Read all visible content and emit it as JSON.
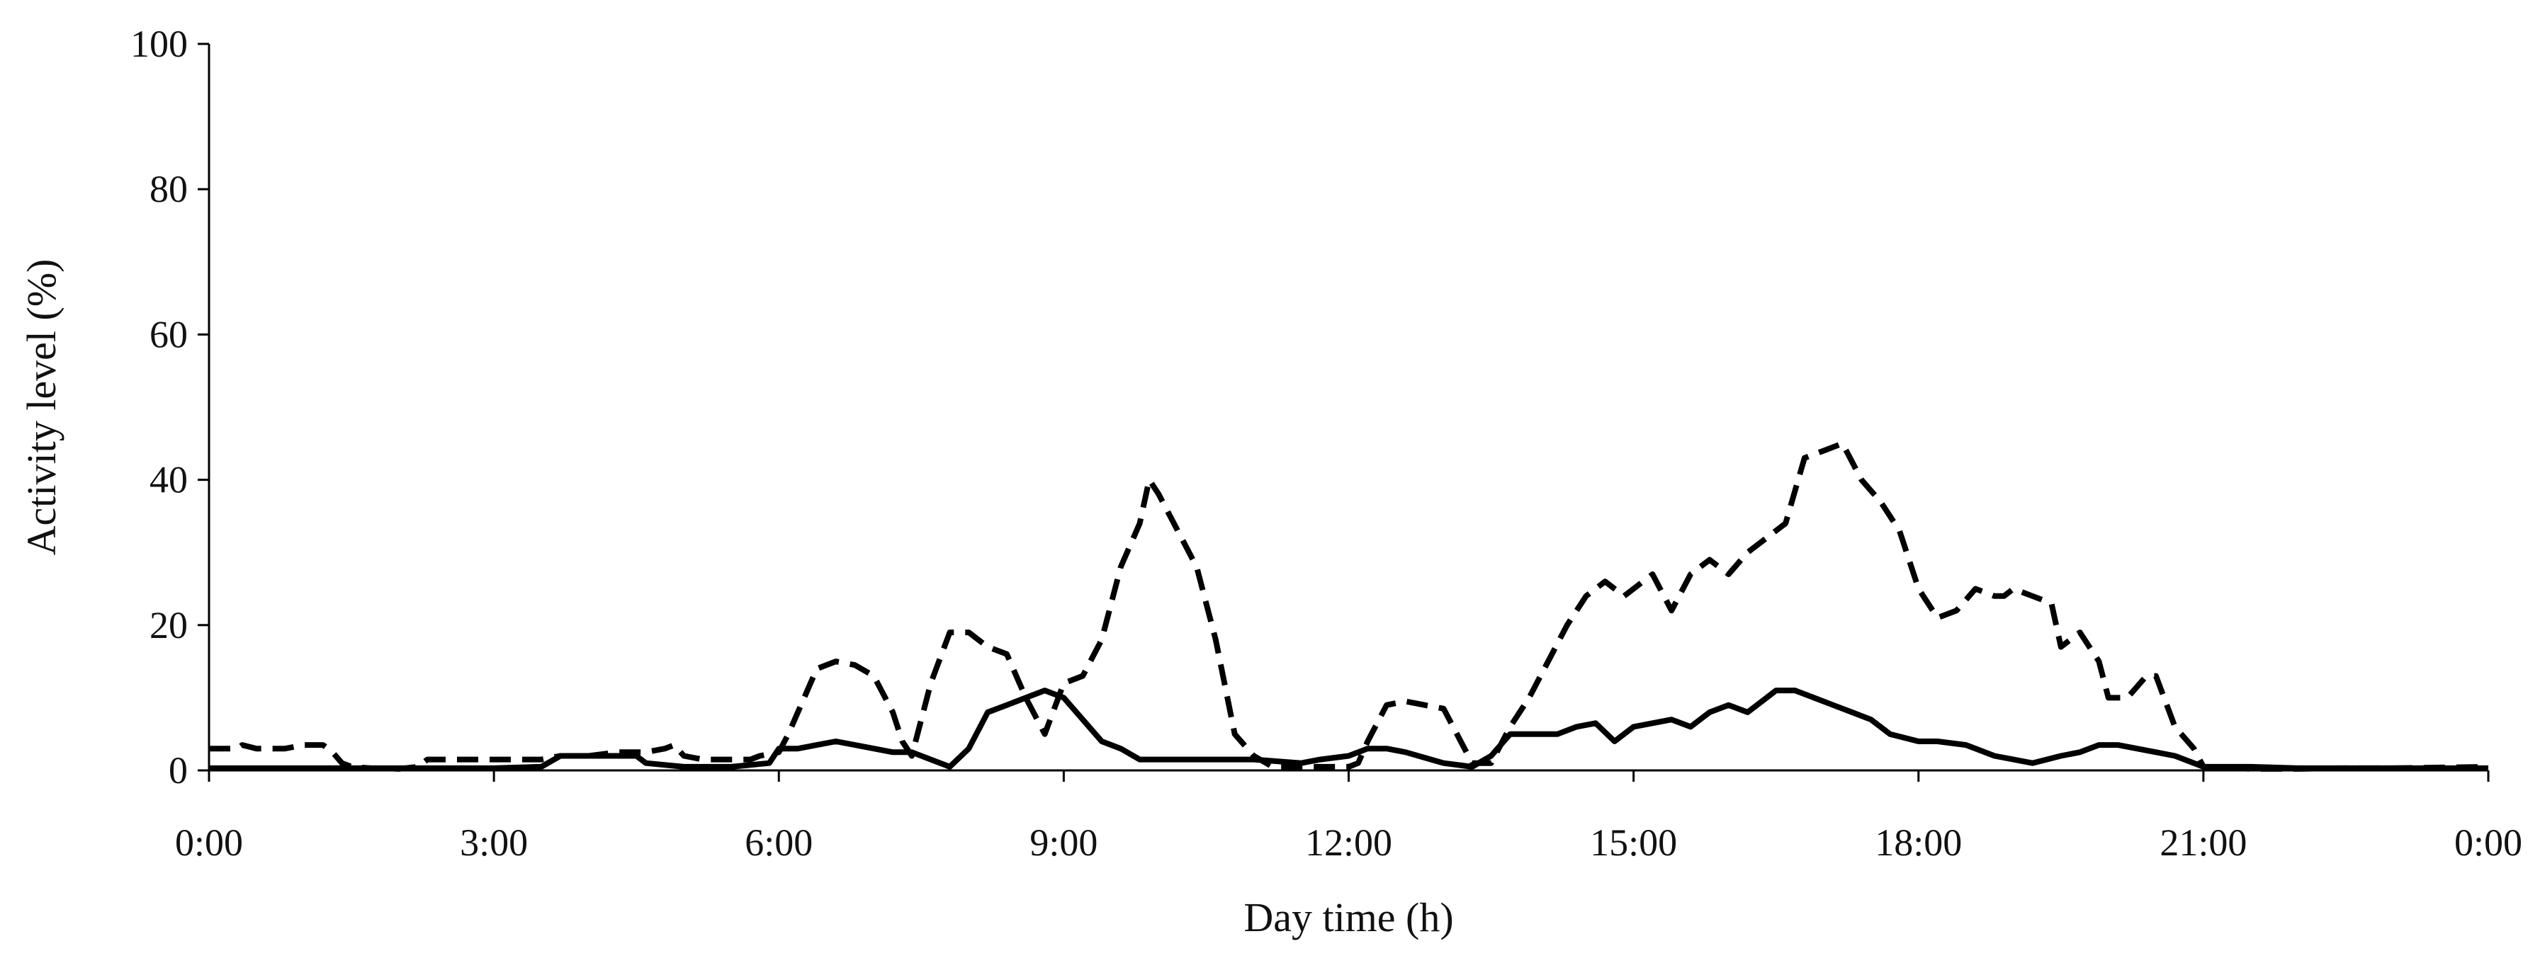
{
  "chart_data": {
    "type": "line",
    "title": "",
    "xlabel": "Day time (h)",
    "ylabel": "Activity level (%)",
    "xlim": [
      0,
      24
    ],
    "ylim": [
      0,
      100
    ],
    "x_ticks": [
      "0:00",
      "3:00",
      "6:00",
      "9:00",
      "12:00",
      "15:00",
      "18:00",
      "21:00",
      "0:00"
    ],
    "y_ticks": [
      "0",
      "20",
      "40",
      "60",
      "80",
      "100"
    ],
    "grid": false,
    "legend": "none",
    "series": [
      {
        "style": "dashed",
        "color": "#000000",
        "x": [
          0,
          0.3,
          0.35,
          0.5,
          0.8,
          1.0,
          1.2,
          1.3,
          1.4,
          1.5,
          1.7,
          2.0,
          2.2,
          2.3,
          3.0,
          3.3,
          3.5,
          3.7,
          4.0,
          4.3,
          4.6,
          4.8,
          4.9,
          5.0,
          5.2,
          5.5,
          5.7,
          5.8,
          6.0,
          6.1,
          6.2,
          6.4,
          6.6,
          6.8,
          7.0,
          7.2,
          7.3,
          7.4,
          7.6,
          7.8,
          8.0,
          8.2,
          8.4,
          8.6,
          8.8,
          9.0,
          9.2,
          9.4,
          9.6,
          9.8,
          9.9,
          10.0,
          10.2,
          10.4,
          10.6,
          10.8,
          11.0,
          11.2,
          11.5,
          11.8,
          12.0,
          12.1,
          12.2,
          12.4,
          12.6,
          12.8,
          13.0,
          13.1,
          13.3,
          13.5,
          13.7,
          13.9,
          14.1,
          14.3,
          14.5,
          14.7,
          14.9,
          15.0,
          15.1,
          15.2,
          15.4,
          15.6,
          15.8,
          16.0,
          16.2,
          16.4,
          16.6,
          16.8,
          17.0,
          17.2,
          17.4,
          17.6,
          17.8,
          18.0,
          18.2,
          18.4,
          18.6,
          18.8,
          18.9,
          19.0,
          19.2,
          19.4,
          19.5,
          19.7,
          19.9,
          20.0,
          20.2,
          20.4,
          20.5,
          20.7,
          20.9,
          21.0,
          21.5,
          22.0,
          22.5,
          23.0,
          23.5,
          24.0
        ],
        "y": [
          3,
          3,
          3.5,
          3,
          3,
          3.5,
          3.5,
          2.5,
          1,
          0.5,
          0.3,
          0.2,
          0.5,
          1.5,
          1.5,
          1.5,
          1.5,
          2,
          2,
          2.5,
          2.5,
          3,
          3.5,
          2,
          1.5,
          1.5,
          1.5,
          2,
          2.5,
          5,
          8,
          14,
          15,
          14.5,
          13,
          8,
          4,
          2,
          12,
          19,
          19,
          17,
          16,
          10,
          5,
          12,
          13,
          18,
          28,
          34,
          40,
          38,
          33,
          28,
          18,
          5,
          2,
          0.5,
          0.5,
          0.5,
          0.5,
          1,
          4,
          9,
          9.5,
          9,
          8.5,
          6,
          1,
          1,
          6,
          10,
          15,
          20,
          24,
          26,
          24,
          25,
          26,
          27,
          22,
          27,
          29,
          27,
          30,
          32,
          34,
          43,
          44,
          45,
          40,
          37,
          33,
          25,
          21,
          22,
          25,
          24,
          24,
          25,
          24,
          23,
          17,
          19,
          15,
          10,
          10,
          13,
          13,
          6,
          3,
          0.5,
          0.2,
          0.2,
          0.3,
          0.3,
          0.4,
          0.5
        ]
      },
      {
        "style": "solid",
        "color": "#000000",
        "x": [
          0,
          1.0,
          2.0,
          3.0,
          3.5,
          3.7,
          4.0,
          4.5,
          4.6,
          5.0,
          5.5,
          5.9,
          6.0,
          6.2,
          6.4,
          6.6,
          6.8,
          7.0,
          7.2,
          7.4,
          7.6,
          7.8,
          8.0,
          8.2,
          8.4,
          8.6,
          8.8,
          9.0,
          9.2,
          9.4,
          9.6,
          9.8,
          10.0,
          10.5,
          11.0,
          11.5,
          11.7,
          12.0,
          12.2,
          12.4,
          12.6,
          13.0,
          13.3,
          13.5,
          13.7,
          14.0,
          14.2,
          14.4,
          14.6,
          14.8,
          15.0,
          15.2,
          15.4,
          15.6,
          15.8,
          16.0,
          16.2,
          16.4,
          16.5,
          16.7,
          16.9,
          17.1,
          17.3,
          17.5,
          17.7,
          18.0,
          18.2,
          18.5,
          18.8,
          19.0,
          19.2,
          19.5,
          19.7,
          19.9,
          20.1,
          20.3,
          20.5,
          20.7,
          20.9,
          21.0,
          21.5,
          22.0,
          23.0,
          24.0
        ],
        "y": [
          0.3,
          0.3,
          0.3,
          0.3,
          0.5,
          2,
          2,
          2,
          1,
          0.5,
          0.5,
          1,
          3,
          3,
          3.5,
          4,
          3.5,
          3,
          2.5,
          2.5,
          1.5,
          0.5,
          3,
          8,
          9,
          10,
          11,
          10,
          7,
          4,
          3,
          1.5,
          1.5,
          1.5,
          1.5,
          1,
          1.5,
          2,
          3,
          3,
          2.5,
          1,
          0.5,
          2,
          5,
          5,
          5,
          6,
          6.5,
          4,
          6,
          6.5,
          7,
          6,
          8,
          9,
          8,
          10,
          11,
          11,
          10,
          9,
          8,
          7,
          5,
          4,
          4,
          3.5,
          2,
          1.5,
          1,
          2,
          2.5,
          3.5,
          3.5,
          3,
          2.5,
          2,
          1,
          0.5,
          0.5,
          0.3,
          0.3,
          0.3
        ]
      }
    ]
  }
}
